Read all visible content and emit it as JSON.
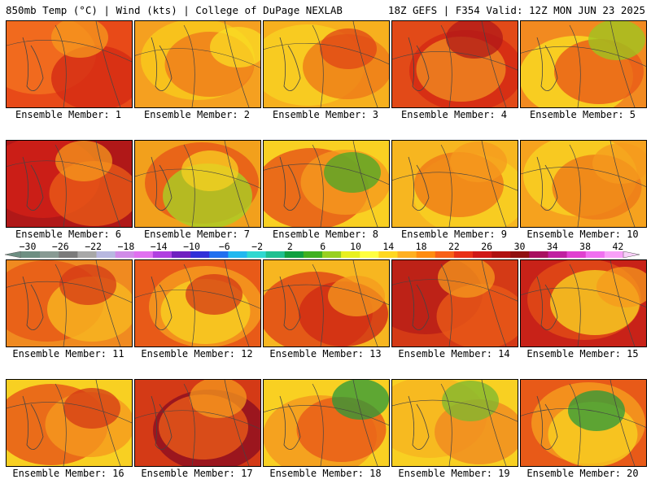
{
  "header": {
    "left": "850mb Temp (°C) | Wind (kts) | College of DuPage NEXLAB",
    "right": "18Z GEFS | F354 Valid: 12Z MON JUN 23 2025"
  },
  "panels": [
    {
      "label": "Ensemble Member: 1"
    },
    {
      "label": "Ensemble Member: 2"
    },
    {
      "label": "Ensemble Member: 3"
    },
    {
      "label": "Ensemble Member: 4"
    },
    {
      "label": "Ensemble Member: 5"
    },
    {
      "label": "Ensemble Member: 6"
    },
    {
      "label": "Ensemble Member: 7"
    },
    {
      "label": "Ensemble Member: 8"
    },
    {
      "label": "Ensemble Member: 9"
    },
    {
      "label": "Ensemble Member: 10"
    },
    {
      "label": "Ensemble Member: 11"
    },
    {
      "label": "Ensemble Member: 12"
    },
    {
      "label": "Ensemble Member: 13"
    },
    {
      "label": "Ensemble Member: 14"
    },
    {
      "label": "Ensemble Member: 15"
    },
    {
      "label": "Ensemble Member: 16"
    },
    {
      "label": "Ensemble Member: 17"
    },
    {
      "label": "Ensemble Member: 18"
    },
    {
      "label": "Ensemble Member: 19"
    },
    {
      "label": "Ensemble Member: 20"
    }
  ],
  "colorbar": {
    "ticks": [
      "−30",
      "−26",
      "−22",
      "−18",
      "−14",
      "−10",
      "−6",
      "−2",
      "2",
      "6",
      "10",
      "14",
      "18",
      "22",
      "26",
      "30",
      "34",
      "38",
      "42"
    ],
    "colors": [
      "#6e8f82",
      "#889a93",
      "#7b7b7b",
      "#a8a8a8",
      "#b8b8e0",
      "#d08ce8",
      "#e070f0",
      "#b040e0",
      "#7020c0",
      "#3030d8",
      "#2070f0",
      "#20b8f0",
      "#30d8d0",
      "#20c090",
      "#10a040",
      "#40b020",
      "#98d020",
      "#e8f020",
      "#ffff40",
      "#ffd820",
      "#ffb020",
      "#ff8c10",
      "#f86018",
      "#e83018",
      "#d01818",
      "#b01010",
      "#901010",
      "#a81060",
      "#c020a0",
      "#e040d0",
      "#f070f0",
      "#f8a0f8"
    ]
  }
}
